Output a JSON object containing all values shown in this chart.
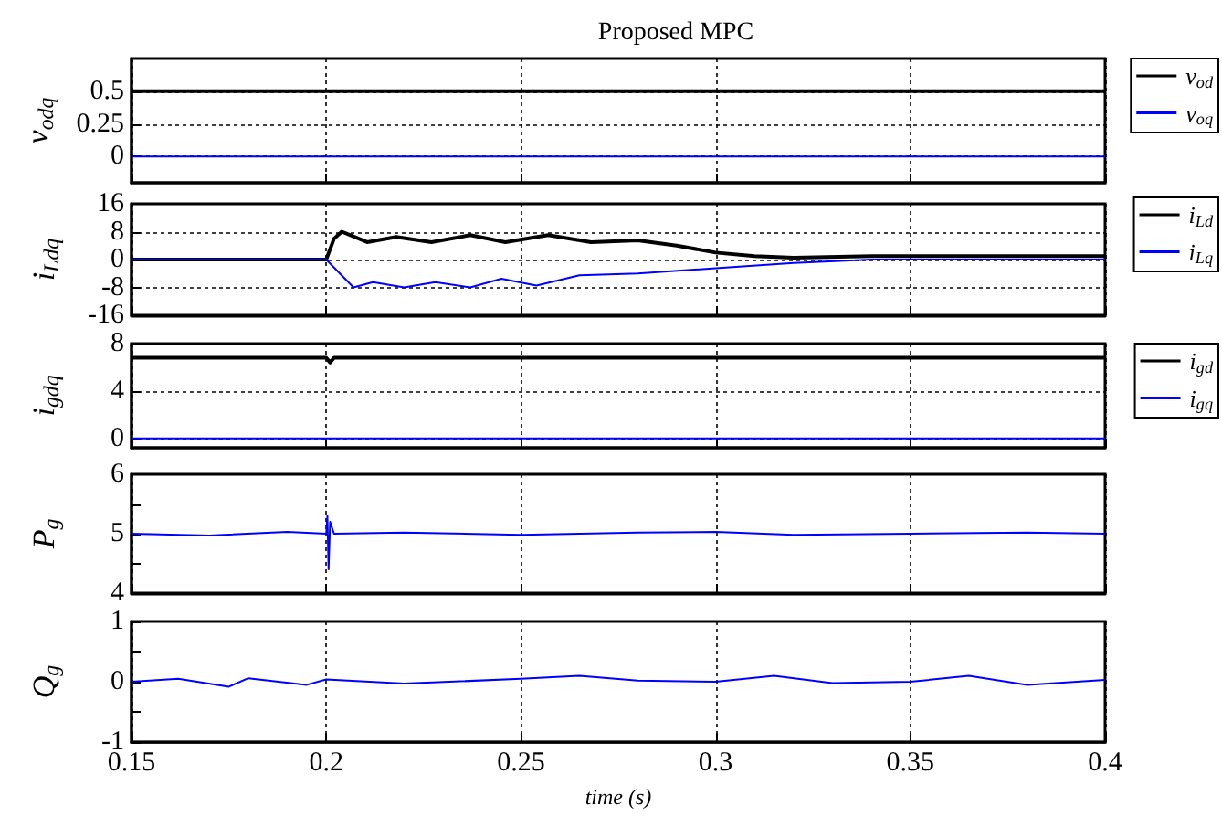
{
  "chart_data": [
    {
      "type": "line",
      "title": "Proposed MPC",
      "ylabel": "v$_{odq}$",
      "xlim": [
        0.15,
        0.4
      ],
      "xticks": [
        0.15,
        0.2,
        0.25,
        0.3,
        0.35,
        0.4
      ],
      "ylim": [
        -0.2,
        0.75
      ],
      "yticks": [
        0,
        0.25,
        0.5
      ],
      "grid": true,
      "legend": "right",
      "tick_labels": "y",
      "line_style": "solid",
      "marker": "none",
      "series": [
        {
          "name": "v$_{od}$",
          "color": "#000000",
          "x": [
            0.15,
            0.2,
            0.25,
            0.3,
            0.35,
            0.4
          ],
          "values": [
            0.5,
            0.5,
            0.5,
            0.5,
            0.5,
            0.5
          ]
        },
        {
          "name": "v$_{oq}$",
          "color": "#0000ff",
          "x": [
            0.15,
            0.2,
            0.25,
            0.3,
            0.35,
            0.4
          ],
          "values": [
            0,
            0,
            0,
            0,
            0,
            0
          ]
        }
      ]
    },
    {
      "type": "line",
      "ylabel": "i$_{Ldq}$",
      "xlim": [
        0.15,
        0.4
      ],
      "xticks": [
        0.15,
        0.2,
        0.25,
        0.3,
        0.35,
        0.4
      ],
      "ylim": [
        -16,
        16
      ],
      "yticks": [
        -16,
        -8,
        0,
        8,
        16
      ],
      "grid": true,
      "legend": "right",
      "tick_labels": "y",
      "line_style": "solid",
      "marker": "none",
      "series": [
        {
          "name": "i$_{Ld}$",
          "color": "#000000",
          "x": [
            0.15,
            0.2,
            0.202,
            0.204,
            0.2105,
            0.218,
            0.227,
            0.237,
            0.246,
            0.257,
            0.268,
            0.28,
            0.29,
            0.3,
            0.31,
            0.32,
            0.34,
            0.36,
            0.38,
            0.4
          ],
          "values": [
            0,
            0,
            6,
            8,
            5,
            6.5,
            5,
            7,
            5,
            7,
            5,
            5.5,
            4,
            2,
            1,
            0.5,
            1,
            1,
            1,
            1
          ]
        },
        {
          "name": "i$_{Lq}$",
          "color": "#0000ff",
          "x": [
            0.15,
            0.2,
            0.207,
            0.212,
            0.22,
            0.228,
            0.237,
            0.245,
            0.254,
            0.265,
            0.28,
            0.3,
            0.32,
            0.34,
            0.37,
            0.4
          ],
          "values": [
            0,
            0,
            -8,
            -6.5,
            -8,
            -6.5,
            -8,
            -5.5,
            -7.5,
            -4.5,
            -4,
            -2.5,
            -1,
            0,
            0,
            0
          ]
        }
      ]
    },
    {
      "type": "line",
      "ylabel": "i$_{gdq}$",
      "xlim": [
        0.15,
        0.4
      ],
      "xticks": [
        0.15,
        0.2,
        0.25,
        0.3,
        0.35,
        0.4
      ],
      "ylim": [
        -0.8,
        8
      ],
      "yticks": [
        0,
        4,
        8
      ],
      "grid": true,
      "legend": "right",
      "tick_labels": "y",
      "line_style": "solid",
      "marker": "none",
      "series": [
        {
          "name": "i$_{gd}$",
          "color": "#000000",
          "x": [
            0.15,
            0.2,
            0.201,
            0.202,
            0.25,
            0.3,
            0.35,
            0.4
          ],
          "values": [
            6.8,
            6.8,
            6.4,
            6.8,
            6.8,
            6.8,
            6.8,
            6.8
          ]
        },
        {
          "name": "i$_{gq}$",
          "color": "#0000ff",
          "x": [
            0.15,
            0.2,
            0.25,
            0.3,
            0.35,
            0.4
          ],
          "values": [
            0,
            0,
            0,
            0,
            0,
            0
          ]
        }
      ]
    },
    {
      "type": "line",
      "ylabel": "P$_{g}$",
      "xlim": [
        0.15,
        0.4
      ],
      "xticks": [
        0.15,
        0.2,
        0.25,
        0.3,
        0.35,
        0.4
      ],
      "ylim": [
        4,
        6
      ],
      "yticks": [
        4,
        {
          "value": 4.5,
          "label": null
        },
        5,
        {
          "value": 5.5,
          "label": null
        },
        6
      ],
      "grid": "x",
      "tick_labels": "y",
      "line_style": "solid",
      "marker": "none",
      "series": [
        {
          "color": "#0000ff",
          "x": [
            0.15,
            0.17,
            0.19,
            0.2,
            0.2003,
            0.2006,
            0.201,
            0.202,
            0.22,
            0.25,
            0.28,
            0.3,
            0.32,
            0.35,
            0.38,
            0.4
          ],
          "values": [
            5,
            4.97,
            5.03,
            5,
            5.3,
            4.4,
            5.2,
            5,
            5.02,
            4.98,
            5.02,
            5.03,
            4.98,
            5,
            5.02,
            5
          ]
        }
      ]
    },
    {
      "type": "line",
      "ylabel": "Q$_{g}$",
      "xlabel": "time (s)",
      "xlim": [
        0.15,
        0.4
      ],
      "xticks": [
        0.15,
        0.2,
        0.25,
        0.3,
        0.35,
        0.4
      ],
      "ylim": [
        -1,
        1
      ],
      "yticks": [
        -1,
        {
          "value": -0.5,
          "label": null
        },
        0,
        {
          "value": 0.5,
          "label": null
        },
        1
      ],
      "grid": "x",
      "line_style": "solid",
      "marker": "none",
      "series": [
        {
          "color": "#0000ff",
          "x": [
            0.15,
            0.162,
            0.175,
            0.18,
            0.195,
            0.2,
            0.22,
            0.25,
            0.265,
            0.28,
            0.3,
            0.315,
            0.33,
            0.35,
            0.365,
            0.38,
            0.4
          ],
          "values": [
            0,
            0.05,
            -0.08,
            0.06,
            -0.05,
            0.04,
            -0.03,
            0.05,
            0.1,
            0.02,
            0,
            0.1,
            -0.02,
            0,
            0.1,
            -0.05,
            0.03
          ]
        }
      ]
    }
  ]
}
